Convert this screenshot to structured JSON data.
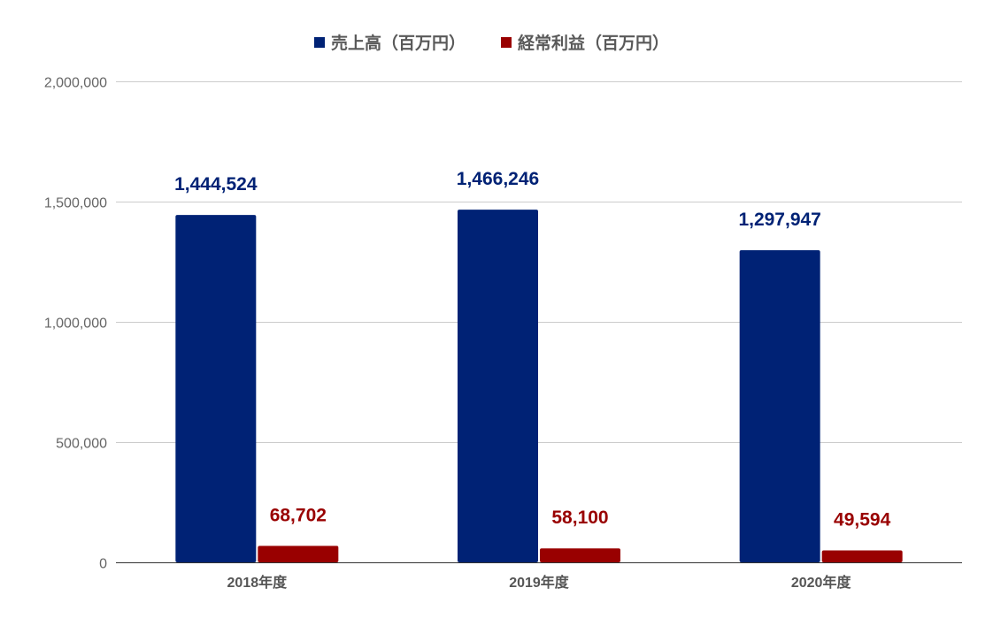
{
  "chart_data": {
    "type": "bar",
    "title": "",
    "xlabel": "",
    "ylabel": "",
    "categories": [
      "2018年度",
      "2019年度",
      "2020年度"
    ],
    "series": [
      {
        "name": "売上高（百万円）",
        "color": "#002275",
        "values": [
          1444524,
          1466246,
          1297947
        ],
        "labels": [
          "1,444,524",
          "1,466,246",
          "1,297,947"
        ]
      },
      {
        "name": "経常利益（百万円）",
        "color": "#990000",
        "values": [
          68702,
          58100,
          49594
        ],
        "labels": [
          "68,702",
          "58,100",
          "49,594"
        ]
      }
    ],
    "ylim": [
      0,
      2000000
    ],
    "y_ticks": [
      0,
      500000,
      1000000,
      1500000,
      2000000
    ],
    "y_tick_labels": [
      "0",
      "500,000",
      "1,000,000",
      "1,500,000",
      "2,000,000"
    ],
    "grid": true,
    "legend_position": "top-center",
    "axis_text_color": "#666666",
    "category_label_color": "#555555",
    "gridline_color": "#cccccc",
    "baseline_color": "#333333"
  }
}
